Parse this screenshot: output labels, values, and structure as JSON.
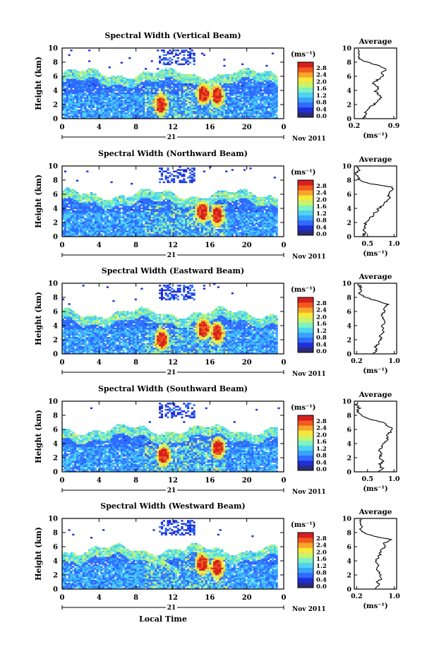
{
  "figure": {
    "xlabel": "Local Time",
    "date_label": "Nov 2011",
    "day_label": "21"
  },
  "colorbar": {
    "unit": "(ms⁻¹)",
    "ticks": [
      "0.0",
      "0.4",
      "0.8",
      "1.2",
      "1.6",
      "2.0",
      "2.4",
      "2.8"
    ],
    "colors": [
      "#2b2b7a",
      "#1f2fd6",
      "#2f6bff",
      "#3aa3ff",
      "#4fd4f0",
      "#7ef2c0",
      "#c8f36a",
      "#f6e83a",
      "#f7a52a",
      "#f05a1e",
      "#d61f1f"
    ]
  },
  "chart_data": [
    {
      "type": "heatmap",
      "title": "Spectral Width (Vertical Beam)",
      "xlabel": "",
      "ylabel": "Height (km)",
      "xlim": [
        0,
        24
      ],
      "ylim": [
        0,
        10
      ],
      "xticks": [
        "0",
        "4",
        "8",
        "12",
        "16",
        "20",
        "0"
      ],
      "yticks": [
        "0",
        "2",
        "4",
        "6",
        "8",
        "10"
      ],
      "zlim": [
        0.0,
        2.8
      ],
      "z_unit": "(ms⁻¹)",
      "cloud_top_km": 6.4,
      "hotspots": [
        {
          "x": 15.3,
          "y": 3.5
        },
        {
          "x": 16.8,
          "y": 3.2
        },
        {
          "x": 10.7,
          "y": 2.0
        }
      ],
      "profile": {
        "title": "Average",
        "xlabel": "(ms⁻¹)",
        "xticks": [
          "0.2",
          "0.9"
        ],
        "xlim": [
          0.2,
          0.95
        ],
        "ylim": [
          0,
          10
        ],
        "height_km": [
          0,
          0.5,
          1,
          1.5,
          2,
          2.5,
          3,
          3.5,
          4,
          4.5,
          5,
          5.5,
          6,
          6.5,
          7,
          7.5,
          8,
          8.5,
          9,
          9.5,
          10
        ],
        "width": [
          0.35,
          0.4,
          0.38,
          0.45,
          0.55,
          0.62,
          0.68,
          0.6,
          0.58,
          0.62,
          0.55,
          0.6,
          0.72,
          0.68,
          0.78,
          0.62,
          0.42,
          0.28,
          0.26,
          0.3,
          0.25
        ]
      }
    },
    {
      "type": "heatmap",
      "title": "Spectral Width (Northward Beam)",
      "xlabel": "",
      "ylabel": "Height (km)",
      "xlim": [
        0,
        24
      ],
      "ylim": [
        0,
        10
      ],
      "xticks": [
        "0",
        "4",
        "8",
        "12",
        "16",
        "20",
        "0"
      ],
      "yticks": [
        "0",
        "2",
        "4",
        "6",
        "8",
        "10"
      ],
      "zlim": [
        0.0,
        2.8
      ],
      "z_unit": "(ms⁻¹)",
      "cloud_top_km": 6.0,
      "hotspots": [
        {
          "x": 15.2,
          "y": 3.5
        },
        {
          "x": 16.8,
          "y": 3.0
        }
      ],
      "profile": {
        "title": "Average",
        "xlabel": "(ms⁻¹)",
        "xticks": [
          "0.5",
          "1.0"
        ],
        "xlim": [
          0.25,
          1.05
        ],
        "ylim": [
          0,
          10
        ],
        "height_km": [
          0,
          0.5,
          1,
          1.5,
          2,
          2.5,
          3,
          3.5,
          4,
          4.5,
          5,
          5.5,
          6,
          6.5,
          7,
          7.5,
          8,
          8.5,
          9,
          9.5,
          10
        ],
        "width": [
          0.4,
          0.45,
          0.42,
          0.48,
          0.46,
          0.55,
          0.6,
          0.66,
          0.72,
          0.78,
          0.85,
          0.92,
          0.88,
          0.95,
          0.98,
          0.55,
          0.35,
          0.3,
          0.28,
          0.35,
          0.3
        ]
      }
    },
    {
      "type": "heatmap",
      "title": "Spectral Width (Eastward Beam)",
      "xlabel": "",
      "ylabel": "Height (km)",
      "xlim": [
        0,
        24
      ],
      "ylim": [
        0,
        10
      ],
      "xticks": [
        "0",
        "4",
        "8",
        "12",
        "16",
        "20",
        "0"
      ],
      "yticks": [
        "0",
        "2",
        "4",
        "6",
        "8",
        "10"
      ],
      "zlim": [
        0.0,
        2.8
      ],
      "z_unit": "(ms⁻¹)",
      "cloud_top_km": 5.8,
      "hotspots": [
        {
          "x": 15.3,
          "y": 3.5
        },
        {
          "x": 16.8,
          "y": 3.0
        },
        {
          "x": 10.8,
          "y": 2.0
        }
      ],
      "profile": {
        "title": "Average",
        "xlabel": "(ms⁻¹)",
        "xticks": [
          "0.2",
          "1.0"
        ],
        "xlim": [
          0.15,
          1.05
        ],
        "ylim": [
          0,
          10
        ],
        "height_km": [
          0,
          0.5,
          1,
          1.5,
          2,
          2.5,
          3,
          3.5,
          4,
          4.5,
          5,
          5.5,
          6,
          6.5,
          7,
          7.5,
          8,
          8.5,
          9,
          9.5,
          10
        ],
        "width": [
          0.55,
          0.62,
          0.58,
          0.68,
          0.72,
          0.7,
          0.75,
          0.78,
          0.72,
          0.8,
          0.76,
          0.7,
          0.82,
          0.78,
          0.88,
          0.62,
          0.4,
          0.25,
          0.3,
          0.28,
          0.22
        ]
      }
    },
    {
      "type": "heatmap",
      "title": "Spectral Width (Southward Beam)",
      "xlabel": "",
      "ylabel": "Height (km)",
      "xlim": [
        0,
        24
      ],
      "ylim": [
        0,
        10
      ],
      "xticks": [
        "0",
        "4",
        "8",
        "12",
        "16",
        "20",
        "0"
      ],
      "yticks": [
        "0",
        "2",
        "4",
        "6",
        "8",
        "10"
      ],
      "zlim": [
        0.0,
        2.8
      ],
      "z_unit": "(ms⁻¹)",
      "cloud_top_km": 6.0,
      "hotspots": [
        {
          "x": 16.9,
          "y": 3.4
        },
        {
          "x": 11.0,
          "y": 2.3
        }
      ],
      "profile": {
        "title": "Average",
        "xlabel": "(ms⁻¹)",
        "xticks": [
          "0.5",
          "1.0"
        ],
        "xlim": [
          0.25,
          1.05
        ],
        "ylim": [
          0,
          10
        ],
        "height_km": [
          0,
          0.5,
          1,
          1.5,
          2,
          2.5,
          3,
          3.5,
          4,
          4.5,
          5,
          5.5,
          6,
          6.5,
          7,
          7.5,
          8,
          8.5,
          9,
          9.5,
          10
        ],
        "width": [
          0.7,
          0.78,
          0.72,
          0.8,
          0.74,
          0.76,
          0.72,
          0.78,
          0.8,
          0.88,
          0.86,
          0.92,
          0.98,
          0.9,
          0.78,
          0.55,
          0.38,
          0.3,
          0.35,
          0.28,
          0.3
        ]
      }
    },
    {
      "type": "heatmap",
      "title": "Spectral Width (Westward Beam)",
      "xlabel": "Local Time",
      "ylabel": "Height (km)",
      "xlim": [
        0,
        24
      ],
      "ylim": [
        0,
        10
      ],
      "xticks": [
        "0",
        "4",
        "8",
        "12",
        "16",
        "20",
        "0"
      ],
      "yticks": [
        "0",
        "2",
        "4",
        "6",
        "8",
        "10"
      ],
      "zlim": [
        0.0,
        2.8
      ],
      "z_unit": "(ms⁻¹)",
      "cloud_top_km": 5.6,
      "hotspots": [
        {
          "x": 15.2,
          "y": 3.6
        },
        {
          "x": 16.8,
          "y": 3.0
        }
      ],
      "profile": {
        "title": "Average",
        "xlabel": "(ms⁻¹)",
        "xticks": [
          "0.2",
          "1.0"
        ],
        "xlim": [
          0.15,
          1.05
        ],
        "ylim": [
          0,
          10
        ],
        "height_km": [
          0,
          0.5,
          1,
          1.5,
          2,
          2.5,
          3,
          3.5,
          4,
          4.5,
          5,
          5.5,
          6,
          6.5,
          7,
          7.5,
          8,
          8.5,
          9,
          9.5,
          10
        ],
        "width": [
          0.6,
          0.68,
          0.64,
          0.72,
          0.7,
          0.66,
          0.62,
          0.68,
          0.6,
          0.66,
          0.7,
          0.72,
          0.8,
          0.78,
          0.95,
          0.55,
          0.35,
          0.28,
          0.32,
          0.26,
          0.3
        ]
      }
    }
  ]
}
